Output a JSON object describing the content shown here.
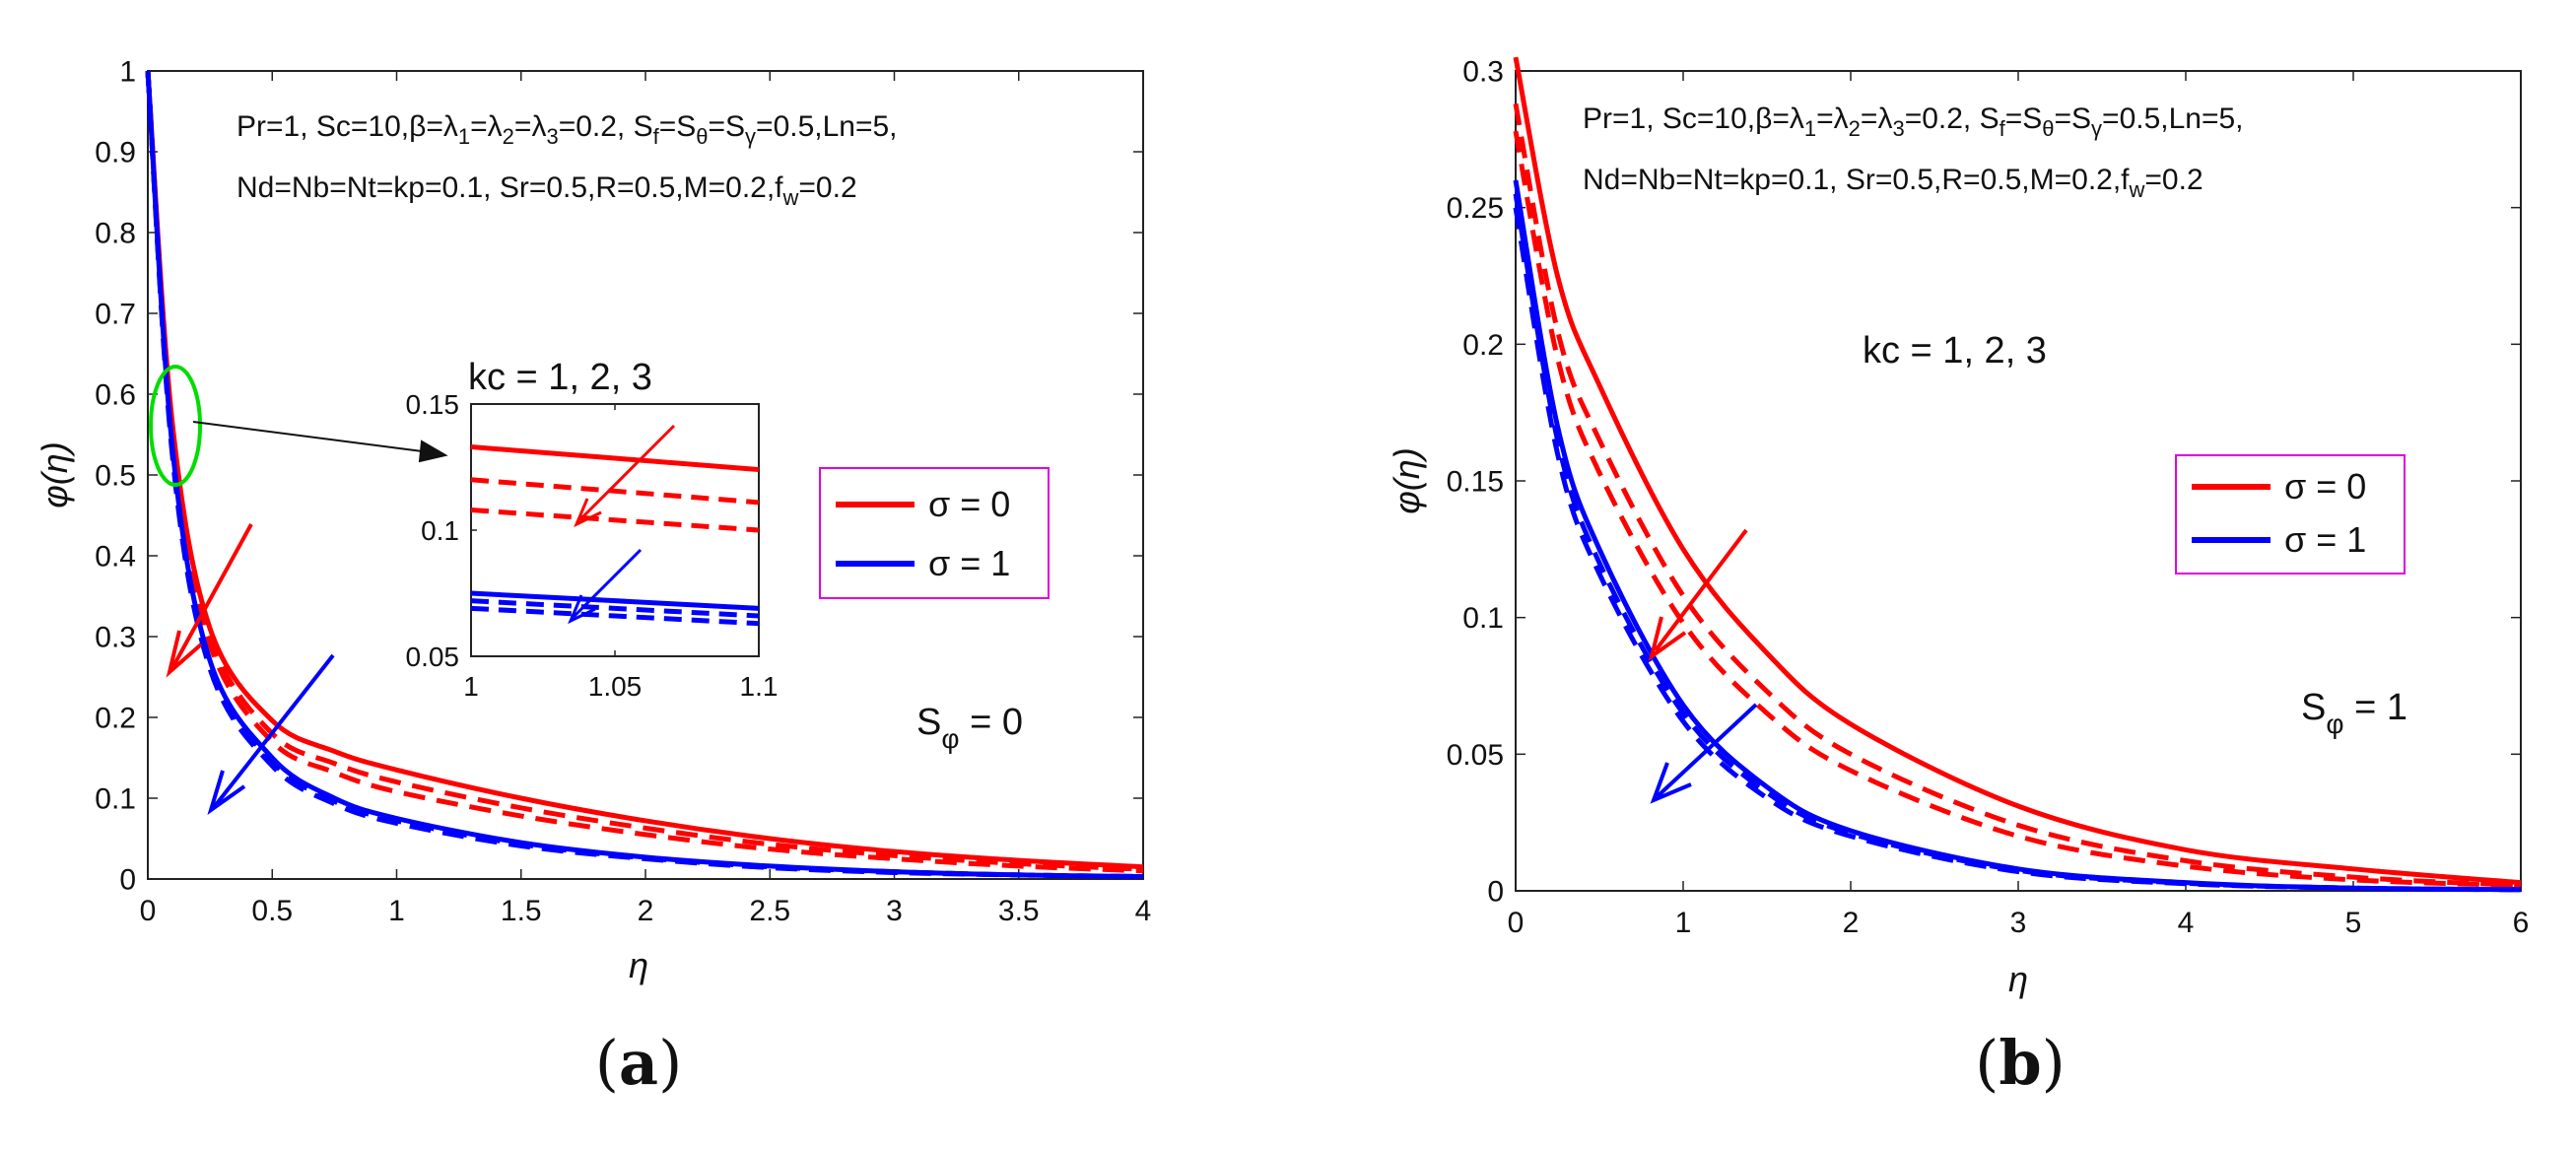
{
  "chart_data": [
    {
      "type": "line",
      "panel": "a",
      "panel_label": "(a)",
      "panel_open": "(",
      "panel_letter": "a",
      "panel_close": ")",
      "xlabel": "η",
      "ylabel": "φ(η)",
      "xlim": [
        0,
        4
      ],
      "ylim": [
        0,
        1
      ],
      "xticks": [
        0,
        0.5,
        1,
        1.5,
        2,
        2.5,
        3,
        3.5,
        4
      ],
      "yticks": [
        0,
        0.1,
        0.2,
        0.3,
        0.4,
        0.5,
        0.6,
        0.7,
        0.8,
        0.9,
        1
      ],
      "xtick_labels": [
        "0",
        "0.5",
        "1",
        "1.5",
        "2",
        "2.5",
        "3",
        "3.5",
        "4"
      ],
      "ytick_labels": [
        "0",
        "0.1",
        "0.2",
        "0.3",
        "0.4",
        "0.5",
        "0.6",
        "0.7",
        "0.8",
        "0.9",
        "1"
      ],
      "annotation_params": [
        "Pr=1, Sc=10,β=λ1=λ2=λ3=0.2, Sf=Sθ=Sγ=0.5,Ln=5,",
        "Nd=Nb=Nt=kp=0.1, Sr=0.5,R=0.5,M=0.2,fw=0.2"
      ],
      "annotation_kc": "kc = 1, 2, 3",
      "annotation_s": "Sφ = 0",
      "legend": [
        "σ = 0",
        "σ = 1"
      ],
      "legend_position": "right-middle",
      "series": [
        {
          "name": "σ = 0, kc = 1",
          "color": "#ff0000",
          "style": "solid",
          "x": [
            0,
            0.1,
            0.25,
            0.5,
            0.75,
            1,
            1.5,
            2,
            2.5,
            3,
            3.5,
            4
          ],
          "y": [
            1.0,
            0.56,
            0.31,
            0.196,
            0.158,
            0.135,
            0.1,
            0.072,
            0.05,
            0.034,
            0.023,
            0.015
          ]
        },
        {
          "name": "σ = 0, kc = 2",
          "color": "#ff0000",
          "style": "dashed",
          "x": [
            0,
            0.1,
            0.25,
            0.5,
            0.75,
            1,
            1.5,
            2,
            2.5,
            3,
            3.5,
            4
          ],
          "y": [
            1.0,
            0.55,
            0.3,
            0.18,
            0.143,
            0.12,
            0.088,
            0.063,
            0.043,
            0.029,
            0.019,
            0.012
          ]
        },
        {
          "name": "σ = 0, kc = 3",
          "color": "#ff0000",
          "style": "dashed",
          "x": [
            0,
            0.1,
            0.25,
            0.5,
            0.75,
            1,
            1.5,
            2,
            2.5,
            3,
            3.5,
            4
          ],
          "y": [
            1.0,
            0.54,
            0.29,
            0.17,
            0.132,
            0.108,
            0.078,
            0.055,
            0.037,
            0.025,
            0.016,
            0.01
          ]
        },
        {
          "name": "σ = 1, kc = 1",
          "color": "#0000ff",
          "style": "solid",
          "x": [
            0,
            0.1,
            0.25,
            0.5,
            0.75,
            1,
            1.5,
            2,
            2.5,
            3,
            3.5,
            4
          ],
          "y": [
            1.0,
            0.53,
            0.27,
            0.15,
            0.1,
            0.075,
            0.045,
            0.027,
            0.016,
            0.009,
            0.005,
            0.003
          ]
        },
        {
          "name": "σ = 1, kc = 2",
          "color": "#0000ff",
          "style": "dashed",
          "x": [
            0,
            0.1,
            0.25,
            0.5,
            0.75,
            1,
            1.5,
            2,
            2.5,
            3,
            3.5,
            4
          ],
          "y": [
            1.0,
            0.525,
            0.265,
            0.145,
            0.096,
            0.072,
            0.043,
            0.026,
            0.015,
            0.009,
            0.005,
            0.003
          ]
        },
        {
          "name": "σ = 1, kc = 3",
          "color": "#0000ff",
          "style": "dashed",
          "x": [
            0,
            0.1,
            0.25,
            0.5,
            0.75,
            1,
            1.5,
            2,
            2.5,
            3,
            3.5,
            4
          ],
          "y": [
            1.0,
            0.52,
            0.26,
            0.14,
            0.093,
            0.069,
            0.041,
            0.025,
            0.014,
            0.008,
            0.005,
            0.003
          ]
        }
      ],
      "inset": {
        "xlim": [
          1,
          1.1
        ],
        "ylim": [
          0.05,
          0.15
        ],
        "xticks": [
          1,
          1.05,
          1.1
        ],
        "yticks": [
          0.05,
          0.1,
          0.15
        ],
        "xtick_labels": [
          "1",
          "1.05",
          "1.1"
        ],
        "ytick_labels": [
          "0.05",
          "0.1",
          "0.15"
        ],
        "series": [
          {
            "name": "σ = 0, kc = 1",
            "color": "#ff0000",
            "style": "solid",
            "x": [
              1,
              1.1
            ],
            "y": [
              0.133,
              0.124
            ]
          },
          {
            "name": "σ = 0, kc = 2",
            "color": "#ff0000",
            "style": "dashed",
            "x": [
              1,
              1.1
            ],
            "y": [
              0.12,
              0.111
            ]
          },
          {
            "name": "σ = 0, kc = 3",
            "color": "#ff0000",
            "style": "dashed",
            "x": [
              1,
              1.1
            ],
            "y": [
              0.108,
              0.1
            ]
          },
          {
            "name": "σ = 1, kc = 1",
            "color": "#0000ff",
            "style": "solid",
            "x": [
              1,
              1.1
            ],
            "y": [
              0.075,
              0.069
            ]
          },
          {
            "name": "σ = 1, kc = 2",
            "color": "#0000ff",
            "style": "dashed",
            "x": [
              1,
              1.1
            ],
            "y": [
              0.072,
              0.066
            ]
          },
          {
            "name": "σ = 1, kc = 3",
            "color": "#0000ff",
            "style": "dashed",
            "x": [
              1,
              1.1
            ],
            "y": [
              0.069,
              0.063
            ]
          }
        ]
      }
    },
    {
      "type": "line",
      "panel": "b",
      "panel_label": "(b)",
      "panel_open": "(",
      "panel_letter": "b",
      "panel_close": ")",
      "xlabel": "η",
      "ylabel": "φ(η)",
      "xlim": [
        0,
        6
      ],
      "ylim": [
        0,
        0.3
      ],
      "xticks": [
        0,
        1,
        2,
        3,
        4,
        5,
        6
      ],
      "yticks": [
        0,
        0.05,
        0.1,
        0.15,
        0.2,
        0.25,
        0.3
      ],
      "xtick_labels": [
        "0",
        "1",
        "2",
        "3",
        "4",
        "5",
        "6"
      ],
      "ytick_labels": [
        "0",
        "0.05",
        "0.1",
        "0.15",
        "0.2",
        "0.25",
        "0.3"
      ],
      "annotation_params": [
        "Pr=1, Sc=10,β=λ1=λ2=λ3=0.2, Sf=Sθ=Sγ=0.5,Ln=5,",
        "Nd=Nb=Nt=kp=0.1, Sr=0.5,R=0.5,M=0.2,fw=0.2"
      ],
      "annotation_kc": "kc = 1, 2, 3",
      "annotation_s": "Sφ = 1",
      "legend": [
        "σ = 0",
        "σ = 1"
      ],
      "legend_position": "top-right",
      "series": [
        {
          "name": "σ = 0, kc = 1",
          "color": "#ff0000",
          "style": "solid",
          "x": [
            0,
            0.25,
            0.5,
            1,
            1.5,
            2,
            3,
            4,
            5,
            6
          ],
          "y": [
            0.305,
            0.225,
            0.185,
            0.125,
            0.087,
            0.061,
            0.031,
            0.015,
            0.008,
            0.003
          ]
        },
        {
          "name": "σ = 0, kc = 2",
          "color": "#ff0000",
          "style": "dashed",
          "x": [
            0,
            0.25,
            0.5,
            1,
            1.5,
            2,
            3,
            4,
            5,
            6
          ],
          "y": [
            0.288,
            0.205,
            0.165,
            0.108,
            0.073,
            0.05,
            0.024,
            0.011,
            0.005,
            0.002
          ]
        },
        {
          "name": "σ = 0, kc = 3",
          "color": "#ff0000",
          "style": "dashed",
          "x": [
            0,
            0.25,
            0.5,
            1,
            1.5,
            2,
            3,
            4,
            5,
            6
          ],
          "y": [
            0.278,
            0.195,
            0.153,
            0.098,
            0.065,
            0.044,
            0.02,
            0.009,
            0.004,
            0.002
          ]
        },
        {
          "name": "σ = 1, kc = 1",
          "color": "#0000ff",
          "style": "solid",
          "x": [
            0,
            0.25,
            0.5,
            1,
            1.5,
            2,
            3,
            4,
            5,
            6
          ],
          "y": [
            0.26,
            0.17,
            0.125,
            0.068,
            0.038,
            0.022,
            0.008,
            0.003,
            0.001,
            0.0005
          ]
        },
        {
          "name": "σ = 1, kc = 2",
          "color": "#0000ff",
          "style": "dashed",
          "x": [
            0,
            0.25,
            0.5,
            1,
            1.5,
            2,
            3,
            4,
            5,
            6
          ],
          "y": [
            0.255,
            0.165,
            0.12,
            0.065,
            0.036,
            0.021,
            0.0075,
            0.0028,
            0.001,
            0.0004
          ]
        },
        {
          "name": "σ = 1, kc = 3",
          "color": "#0000ff",
          "style": "dashed",
          "x": [
            0,
            0.25,
            0.5,
            1,
            1.5,
            2,
            3,
            4,
            5,
            6
          ],
          "y": [
            0.25,
            0.16,
            0.116,
            0.062,
            0.034,
            0.02,
            0.007,
            0.0026,
            0.001,
            0.0004
          ]
        }
      ]
    }
  ]
}
